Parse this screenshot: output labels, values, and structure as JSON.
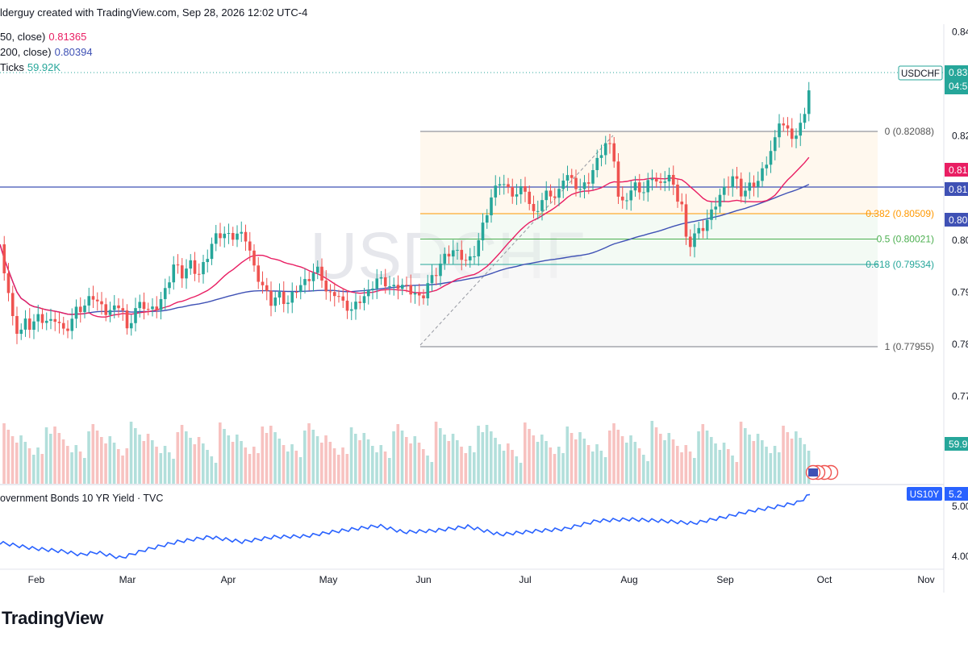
{
  "header": {
    "text": "lderguy created with TradingView.com, Sep 28, 2026 12:02 UTC-4"
  },
  "legend": [
    {
      "label": "50, close)",
      "value": "0.81365",
      "color": "#e91e63"
    },
    {
      "label": "200, close)",
      "value": "0.80394",
      "color": "#3f51b5"
    },
    {
      "label": "Ticks",
      "value": "59.92K",
      "color": "#26a69a"
    }
  ],
  "watermark": "USDCHF",
  "branding": "TradingView",
  "subchart": {
    "title": "overnment Bonds 10 YR Yield · TVC"
  },
  "colors": {
    "up": "#26a69a",
    "down": "#ef5350",
    "ma50": "#e91e63",
    "ma200": "#3f51b5",
    "hline": "#3f51b5",
    "fib_382": "#ff9800",
    "fib_05": "#4caf50",
    "fib_0618": "#26a69a",
    "yield_line": "#2962ff"
  },
  "chart_data": {
    "type": "candlestick",
    "symbol": "USDCHF",
    "y_ticks": [
      "0.84",
      "0.82",
      "0.80",
      "0.79",
      "0.78",
      "0.77"
    ],
    "x_ticks": [
      "Feb",
      "Mar",
      "Apr",
      "May",
      "Jun",
      "Jul",
      "Aug",
      "Sep",
      "Oct",
      "Nov"
    ],
    "price_labels": [
      {
        "text": "0.83",
        "sub": "04:5",
        "kind": "last",
        "value": 0.831
      },
      {
        "text": "0.81",
        "kind": "ma50",
        "value": 0.8136
      },
      {
        "text": "0.81",
        "kind": "hline",
        "value": 0.8102
      },
      {
        "text": "0.80",
        "kind": "ma200",
        "value": 0.8039
      },
      {
        "text": "59.9",
        "kind": "volume",
        "value": 59.92
      }
    ],
    "symbol_tag": "USDCHF",
    "horizontal_line": 0.8102,
    "fibonacci": {
      "from": "Jun",
      "to": "Sep",
      "levels": [
        {
          "ratio": "0",
          "value": 0.82088,
          "label": "0 (0.82088)"
        },
        {
          "ratio": "0.382",
          "value": 0.80509,
          "label": "0.382 (0.80509)"
        },
        {
          "ratio": "0.5",
          "value": 0.80021,
          "label": "0.5 (0.80021)"
        },
        {
          "ratio": "0.618",
          "value": 0.79534,
          "label": "0.618 (0.79534)"
        },
        {
          "ratio": "1",
          "value": 0.77955,
          "label": "1 (0.77955)"
        }
      ]
    },
    "ma50_last": 0.81365,
    "ma200_last": 0.80394,
    "volume_last": "59.92K",
    "subchart": {
      "symbol_tag": "US10Y",
      "tag_value": "5.2",
      "y_ticks": [
        "5.00",
        "4.00"
      ]
    }
  }
}
